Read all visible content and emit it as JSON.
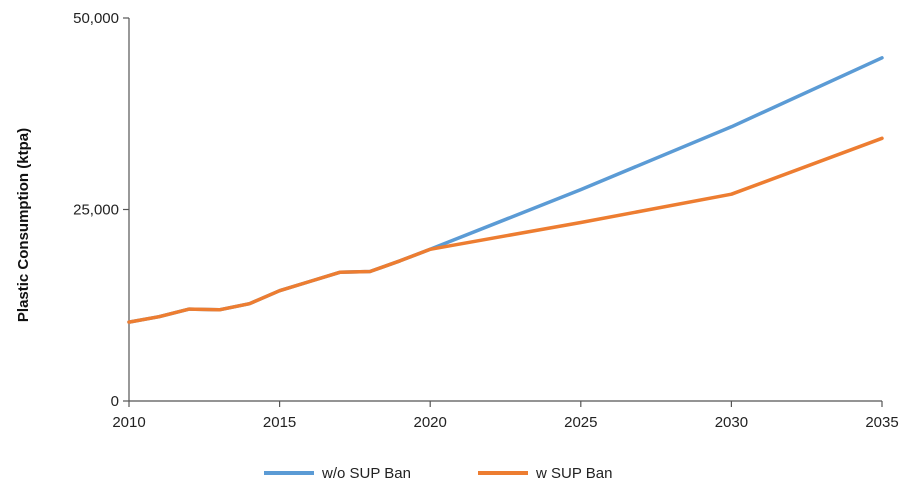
{
  "chart_data": {
    "type": "line",
    "title": "",
    "xlabel": "",
    "ylabel": "Plastic Consumption (ktpa)",
    "xlim": [
      2010,
      2035
    ],
    "ylim": [
      0,
      50000
    ],
    "x_ticks": [
      "2010",
      "2015",
      "2020",
      "2025",
      "2030",
      "2035"
    ],
    "x_tick_values": [
      2010,
      2015,
      2020,
      2025,
      2030,
      2035
    ],
    "y_ticks": [
      "0",
      "25,000",
      "50,000"
    ],
    "y_tick_values": [
      0,
      25000,
      50000
    ],
    "grid": false,
    "legend_position": "bottom",
    "series": [
      {
        "name": "w/o SUP Ban",
        "color": "#5b9bd5",
        "x": [
          2010,
          2011,
          2012,
          2013,
          2014,
          2015,
          2016,
          2017,
          2018,
          2019,
          2020,
          2025,
          2030,
          2035
        ],
        "values": [
          10300,
          11000,
          12000,
          11900,
          12700,
          14400,
          15600,
          16800,
          16900,
          18300,
          19800,
          27600,
          35800,
          44800
        ]
      },
      {
        "name": "w SUP Ban",
        "color": "#ed7d31",
        "x": [
          2010,
          2011,
          2012,
          2013,
          2014,
          2015,
          2016,
          2017,
          2018,
          2019,
          2020,
          2025,
          2030,
          2035
        ],
        "values": [
          10300,
          11000,
          12000,
          11900,
          12700,
          14400,
          15600,
          16800,
          16900,
          18300,
          19800,
          23300,
          27000,
          34300
        ]
      }
    ]
  }
}
